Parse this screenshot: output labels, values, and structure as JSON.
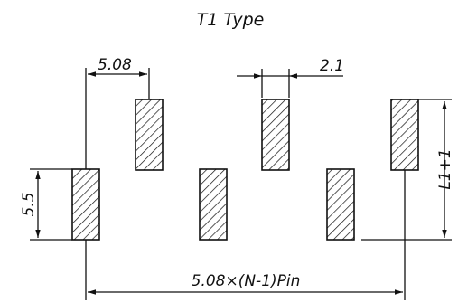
{
  "diagram": {
    "title": "T1  Type",
    "dimensions": {
      "pitch": "5.08",
      "pad_width": "2.1",
      "pad_height": "5.5",
      "row_offset": "L1+1",
      "overall_length": "5.08×(N-1)Pin"
    },
    "colors": {
      "stroke": "#111111",
      "background": "#ffffff"
    }
  }
}
